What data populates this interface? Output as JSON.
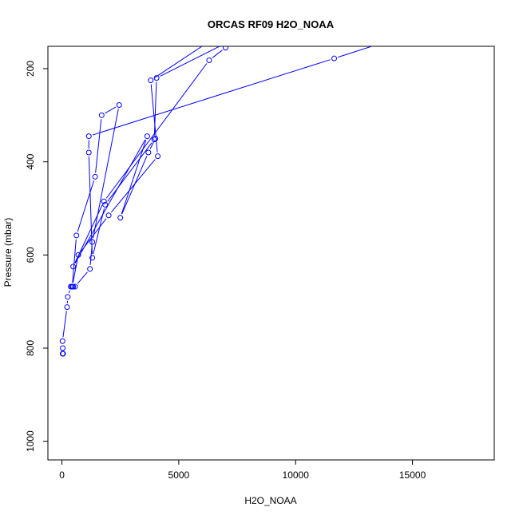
{
  "chart_data": {
    "type": "line",
    "title": "ORCAS RF09 H2O_NOAA",
    "xlabel": "H2O_NOAA",
    "ylabel": "Pressure (mbar)",
    "xlim": [
      -600,
      18500
    ],
    "ylim": [
      1040,
      152
    ],
    "y_reversed": true,
    "grid": false,
    "legend": "none",
    "xticks": [
      0,
      5000,
      10000,
      15000
    ],
    "yticks": [
      200,
      400,
      600,
      800,
      1000
    ],
    "series_color": "#0000ff",
    "point_style": "open-circle",
    "series": [
      {
        "points": [
          [
            30,
            812
          ],
          [
            40,
            812
          ],
          [
            50,
            812
          ],
          [
            35,
            800
          ],
          [
            25,
            785
          ],
          [
            220,
            712
          ],
          [
            250,
            690
          ],
          [
            380,
            668
          ],
          [
            430,
            668
          ],
          [
            480,
            668
          ],
          [
            560,
            668
          ],
          [
            1200,
            630
          ],
          [
            1300,
            572
          ],
          [
            2450,
            278
          ],
          [
            1700,
            300
          ],
          [
            1420,
            432
          ],
          [
            620,
            558
          ],
          [
            440,
            668
          ],
          [
            700,
            600
          ],
          [
            2000,
            515
          ],
          [
            4100,
            388
          ],
          [
            3800,
            225
          ],
          [
            8000,
            85
          ],
          [
            14000,
            140
          ],
          [
            11650,
            178
          ],
          [
            1150,
            345
          ],
          [
            1150,
            380
          ],
          [
            1300,
            606
          ],
          [
            1850,
            492
          ],
          [
            3950,
            352
          ],
          [
            4050,
            220
          ],
          [
            9000,
            95
          ],
          [
            7000,
            155
          ],
          [
            6300,
            182
          ],
          [
            1800,
            485
          ],
          [
            480,
            625
          ],
          [
            3650,
            345
          ],
          [
            2500,
            520
          ],
          [
            3700,
            380
          ],
          [
            4000,
            350
          ]
        ]
      }
    ]
  }
}
